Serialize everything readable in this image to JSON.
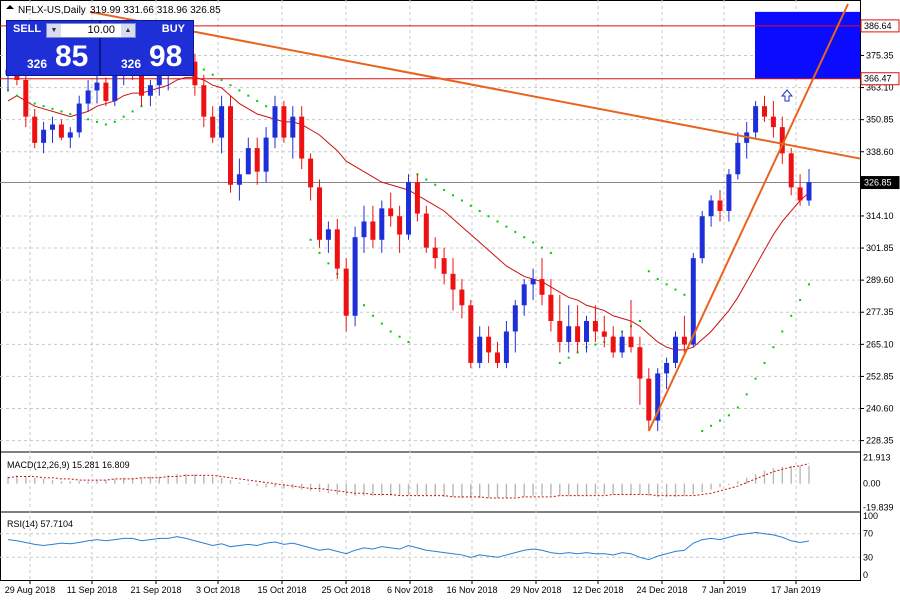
{
  "symbol_header": {
    "label": "NFLX-US,Daily",
    "ohlc": "319.99 331.66 318.96 326.85"
  },
  "trade_panel": {
    "sell_label": "SELL",
    "buy_label": "BUY",
    "lot": "10.00",
    "sell_price_small": "326",
    "sell_price_big": "85",
    "buy_price_small": "326",
    "buy_price_big": "98"
  },
  "colors": {
    "bull": "#1f2fd8",
    "bear": "#ee1111",
    "ma": "#cc1111",
    "sar": "#00cc00",
    "trendline": "#e8641e",
    "zone": "#0b0bff",
    "hline": "#dd1111",
    "rsi": "#2a7fd4",
    "grid": "#c8c8c8"
  },
  "chart_data": {
    "type": "candlestick",
    "y_ticks": [
      "375.35",
      "363.10",
      "350.85",
      "338.60",
      "326.85",
      "314.10",
      "301.85",
      "289.60",
      "277.35",
      "265.10",
      "252.85",
      "240.60",
      "228.35"
    ],
    "tags": [
      {
        "label": "386.64",
        "value": 386.64,
        "style": "red"
      },
      {
        "label": "366.47",
        "value": 366.47,
        "style": "red"
      },
      {
        "label": "326.85",
        "value": 326.85,
        "style": "black"
      }
    ],
    "ylim": [
      224,
      395
    ],
    "x_labels": [
      "29 Aug 2018",
      "11 Sep 2018",
      "21 Sep 2018",
      "3 Oct 2018",
      "15 Oct 2018",
      "25 Oct 2018",
      "6 Nov 2018",
      "16 Nov 2018",
      "29 Nov 2018",
      "12 Dec 2018",
      "24 Dec 2018",
      "7 Jan 2019",
      "17 Jan 2019"
    ],
    "candles": [
      [
        368,
        373,
        362,
        370
      ],
      [
        370,
        375,
        364,
        366
      ],
      [
        366,
        371,
        348,
        352
      ],
      [
        352,
        355,
        340,
        342
      ],
      [
        342,
        350,
        338,
        347
      ],
      [
        347,
        352,
        342,
        349
      ],
      [
        349,
        351,
        343,
        344
      ],
      [
        344,
        348,
        340,
        346
      ],
      [
        346,
        360,
        344,
        357
      ],
      [
        357,
        366,
        354,
        362
      ],
      [
        362,
        368,
        357,
        365
      ],
      [
        365,
        367,
        356,
        358
      ],
      [
        358,
        370,
        356,
        368
      ],
      [
        368,
        374,
        364,
        372
      ],
      [
        372,
        377,
        366,
        370
      ],
      [
        370,
        373,
        356,
        360
      ],
      [
        360,
        366,
        356,
        364
      ],
      [
        364,
        374,
        360,
        371
      ],
      [
        371,
        376,
        362,
        372
      ],
      [
        372,
        384,
        370,
        380
      ],
      [
        380,
        384,
        370,
        373
      ],
      [
        373,
        376,
        360,
        364
      ],
      [
        364,
        368,
        348,
        352
      ],
      [
        352,
        356,
        342,
        344
      ],
      [
        344,
        360,
        338,
        356
      ],
      [
        356,
        360,
        323,
        326
      ],
      [
        326,
        336,
        320,
        330
      ],
      [
        330,
        344,
        330,
        340
      ],
      [
        340,
        344,
        326,
        331
      ],
      [
        331,
        348,
        327,
        344
      ],
      [
        344,
        360,
        340,
        356
      ],
      [
        356,
        358,
        342,
        344
      ],
      [
        344,
        356,
        336,
        352
      ],
      [
        352,
        356,
        332,
        336
      ],
      [
        336,
        338,
        320,
        325
      ],
      [
        325,
        328,
        302,
        305
      ],
      [
        305,
        312,
        300,
        309
      ],
      [
        309,
        313,
        290,
        294
      ],
      [
        294,
        298,
        270,
        276
      ],
      [
        276,
        310,
        272,
        306
      ],
      [
        306,
        318,
        300,
        312
      ],
      [
        312,
        318,
        302,
        305
      ],
      [
        305,
        320,
        300,
        317
      ],
      [
        317,
        323,
        310,
        314
      ],
      [
        314,
        318,
        300,
        307
      ],
      [
        307,
        330,
        305,
        327
      ],
      [
        327,
        330,
        312,
        315
      ],
      [
        315,
        318,
        300,
        302
      ],
      [
        302,
        306,
        294,
        298
      ],
      [
        298,
        302,
        288,
        292
      ],
      [
        292,
        298,
        278,
        286
      ],
      [
        286,
        290,
        275,
        280
      ],
      [
        280,
        282,
        256,
        258
      ],
      [
        258,
        272,
        256,
        268
      ],
      [
        268,
        272,
        258,
        262
      ],
      [
        262,
        266,
        256,
        258
      ],
      [
        258,
        274,
        256,
        270
      ],
      [
        270,
        282,
        262,
        280
      ],
      [
        280,
        290,
        276,
        288
      ],
      [
        288,
        294,
        282,
        290
      ],
      [
        290,
        298,
        280,
        284
      ],
      [
        284,
        290,
        270,
        274
      ],
      [
        274,
        284,
        262,
        266
      ],
      [
        266,
        280,
        262,
        272
      ],
      [
        272,
        280,
        262,
        266
      ],
      [
        266,
        276,
        262,
        274
      ],
      [
        274,
        280,
        266,
        270
      ],
      [
        270,
        276,
        264,
        268
      ],
      [
        268,
        272,
        260,
        262
      ],
      [
        262,
        270,
        260,
        268
      ],
      [
        268,
        282,
        262,
        264
      ],
      [
        264,
        268,
        242,
        252
      ],
      [
        252,
        256,
        232,
        236
      ],
      [
        236,
        256,
        232,
        254
      ],
      [
        254,
        260,
        248,
        258
      ],
      [
        258,
        270,
        256,
        268
      ],
      [
        268,
        276,
        262,
        265
      ],
      [
        265,
        300,
        264,
        298
      ],
      [
        298,
        316,
        296,
        314
      ],
      [
        314,
        322,
        310,
        320
      ],
      [
        320,
        324,
        312,
        316
      ],
      [
        316,
        332,
        312,
        330
      ],
      [
        330,
        346,
        328,
        342
      ],
      [
        342,
        350,
        336,
        346
      ],
      [
        346,
        358,
        344,
        356
      ],
      [
        356,
        360,
        350,
        352
      ],
      [
        352,
        358,
        344,
        348
      ],
      [
        348,
        352,
        334,
        338
      ],
      [
        338,
        340,
        322,
        325
      ],
      [
        325,
        330,
        318,
        320
      ],
      [
        320,
        332,
        318,
        327
      ]
    ],
    "ma": [
      358,
      360,
      358,
      356,
      355,
      354,
      353,
      352,
      353,
      354,
      356,
      357,
      358,
      360,
      361,
      361,
      362,
      363,
      364,
      366,
      367,
      367,
      366,
      364,
      363,
      360,
      357,
      355,
      353,
      352,
      351,
      350,
      350,
      349,
      347,
      345,
      342,
      339,
      335,
      333,
      331,
      329,
      327,
      326,
      325,
      324,
      322,
      320,
      318,
      316,
      313,
      310,
      307,
      304,
      301,
      298,
      295,
      293,
      291,
      290,
      289,
      287,
      285,
      283,
      282,
      280,
      279,
      278,
      276,
      275,
      274,
      272,
      269,
      266,
      264,
      263,
      263,
      264,
      267,
      270,
      274,
      278,
      283,
      289,
      295,
      301,
      307,
      312,
      316,
      320,
      323
    ],
    "sar": [
      362,
      360,
      358,
      357,
      356,
      355,
      354,
      353,
      352,
      351,
      350,
      349,
      350,
      352,
      354,
      356,
      380,
      379,
      378,
      376,
      374,
      372,
      370,
      368,
      366,
      364,
      362,
      360,
      358,
      356,
      354,
      352,
      350,
      348,
      305,
      300,
      296,
      292,
      288,
      284,
      280,
      276,
      273,
      270,
      268,
      266,
      330,
      328,
      326,
      324,
      322,
      320,
      318,
      316,
      314,
      312,
      310,
      308,
      306,
      304,
      302,
      300,
      258,
      260,
      262,
      264,
      265,
      266,
      268,
      270,
      272,
      274,
      293,
      290,
      288,
      286,
      284,
      282,
      232,
      234,
      236,
      238,
      241,
      246,
      252,
      258,
      264,
      270,
      276,
      282,
      288
    ],
    "macd": {
      "label": "MACD(12,26,9) 15.281 16.809",
      "ticks": [
        "21.913",
        "0.00",
        "-19.839"
      ],
      "ylim": [
        -22,
        24
      ],
      "hist": [
        6,
        7,
        6,
        5,
        4,
        3,
        2,
        2,
        2,
        2,
        3,
        3,
        4,
        5,
        5,
        5,
        6,
        6,
        7,
        8,
        8,
        8,
        7,
        6,
        5,
        3,
        1,
        -1,
        -2,
        -3,
        -3,
        -4,
        -4,
        -5,
        -6,
        -7,
        -8,
        -9,
        -10,
        -10,
        -10,
        -10,
        -10,
        -10,
        -10,
        -10,
        -10,
        -10,
        -10,
        -11,
        -11,
        -12,
        -12,
        -12,
        -12,
        -12,
        -12,
        -11,
        -11,
        -10,
        -10,
        -10,
        -10,
        -10,
        -10,
        -10,
        -9,
        -9,
        -9,
        -9,
        -9,
        -9,
        -10,
        -11,
        -11,
        -11,
        -10,
        -9,
        -7,
        -5,
        -3,
        -1,
        2,
        5,
        8,
        11,
        13,
        14,
        15,
        15,
        15
      ],
      "signal": [
        5,
        6,
        6,
        6,
        5,
        5,
        4,
        4,
        3,
        3,
        3,
        3,
        4,
        4,
        4,
        5,
        5,
        5,
        6,
        6,
        7,
        7,
        7,
        7,
        6,
        5,
        4,
        3,
        2,
        1,
        0,
        -1,
        -2,
        -3,
        -4,
        -4,
        -5,
        -6,
        -7,
        -8,
        -8,
        -9,
        -9,
        -9,
        -10,
        -10,
        -10,
        -10,
        -10,
        -10,
        -11,
        -11,
        -11,
        -11,
        -12,
        -12,
        -12,
        -12,
        -11,
        -11,
        -11,
        -11,
        -10,
        -10,
        -10,
        -10,
        -10,
        -10,
        -9,
        -9,
        -9,
        -9,
        -9,
        -10,
        -10,
        -10,
        -10,
        -10,
        -9,
        -8,
        -6,
        -4,
        -2,
        1,
        4,
        7,
        10,
        12,
        14,
        15,
        16.8
      ]
    },
    "rsi": {
      "label": "RSI(14) 57.7104",
      "ticks": [
        "100",
        "70",
        "30",
        "0"
      ],
      "ylim": [
        0,
        100
      ],
      "values": [
        60,
        58,
        55,
        52,
        50,
        52,
        54,
        53,
        55,
        58,
        60,
        58,
        60,
        62,
        62,
        58,
        60,
        62,
        62,
        65,
        62,
        58,
        54,
        50,
        53,
        48,
        50,
        52,
        50,
        54,
        56,
        52,
        54,
        50,
        46,
        42,
        44,
        40,
        36,
        42,
        46,
        44,
        48,
        46,
        44,
        50,
        46,
        42,
        40,
        38,
        36,
        34,
        30,
        34,
        32,
        30,
        34,
        38,
        42,
        44,
        42,
        38,
        36,
        38,
        36,
        38,
        36,
        36,
        34,
        38,
        36,
        30,
        26,
        32,
        36,
        40,
        42,
        54,
        60,
        62,
        60,
        64,
        68,
        70,
        72,
        70,
        68,
        64,
        58,
        55,
        57.7
      ]
    }
  }
}
